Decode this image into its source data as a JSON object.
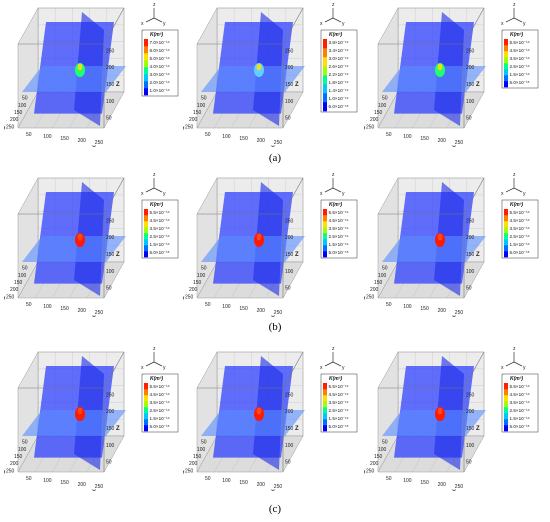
{
  "figure": {
    "rows": [
      {
        "caption": "(a)",
        "panels": [
          {
            "legend_title": "K(m²)",
            "legend_values": [
              "7.0×10⁻¹⁴",
              "6.0×10⁻¹⁴",
              "5.0×10⁻¹⁴",
              "4.0×10⁻¹⁴",
              "3.0×10⁻¹⁴",
              "2.0×10⁻¹⁴",
              "1.0×10⁻¹⁴"
            ],
            "blob": "green"
          },
          {
            "legend_title": "K(m²)",
            "legend_values": [
              "3.8×10⁻¹⁴",
              "3.4×10⁻¹⁴",
              "3.0×10⁻¹⁴",
              "2.6×10⁻¹⁴",
              "2.2×10⁻¹⁴",
              "1.8×10⁻¹⁴",
              "1.4×10⁻¹⁴",
              "1.0×10⁻¹⁴",
              "6.0×10⁻¹⁵"
            ],
            "blob": "faint"
          },
          {
            "legend_title": "K(m²)",
            "legend_values": [
              "5.5×10⁻¹⁴",
              "4.5×10⁻¹⁴",
              "3.5×10⁻¹⁴",
              "2.5×10⁻¹⁴",
              "1.5×10⁻¹⁴",
              "5.0×10⁻¹⁵"
            ],
            "blob": "green"
          }
        ]
      },
      {
        "caption": "(b)",
        "panels": [
          {
            "legend_title": "K(m²)",
            "legend_values": [
              "5.5×10⁻¹⁴",
              "4.5×10⁻¹⁴",
              "3.5×10⁻¹⁴",
              "2.5×10⁻¹⁴",
              "1.5×10⁻¹⁴",
              "5.0×10⁻¹⁵"
            ],
            "blob": "red"
          },
          {
            "legend_title": "K(m²)",
            "legend_values": [
              "5.5×10⁻¹⁴",
              "4.5×10⁻¹⁴",
              "3.5×10⁻¹⁴",
              "2.5×10⁻¹⁴",
              "1.5×10⁻¹⁴",
              "5.0×10⁻¹⁵"
            ],
            "blob": "red"
          },
          {
            "legend_title": "K(m²)",
            "legend_values": [
              "5.5×10⁻¹⁴",
              "4.5×10⁻¹⁴",
              "3.5×10⁻¹⁴",
              "2.5×10⁻¹⁴",
              "1.5×10⁻¹⁴",
              "5.0×10⁻¹⁵"
            ],
            "blob": "red"
          }
        ]
      },
      {
        "caption": "(c)",
        "panels": [
          {
            "legend_title": "K(m²)",
            "legend_values": [
              "5.5×10⁻¹⁴",
              "4.5×10⁻¹⁴",
              "3.5×10⁻¹⁴",
              "2.5×10⁻¹⁴",
              "1.5×10⁻¹⁴",
              "5.0×10⁻¹⁵"
            ],
            "blob": "red"
          },
          {
            "legend_title": "K(m²)",
            "legend_values": [
              "5.5×10⁻¹⁴",
              "4.5×10⁻¹⁴",
              "3.5×10⁻¹⁴",
              "2.5×10⁻¹⁴",
              "1.5×10⁻¹⁴",
              "5.0×10⁻¹⁵"
            ],
            "blob": "red"
          },
          {
            "legend_title": "K(m²)",
            "legend_values": [
              "5.5×10⁻¹⁴",
              "4.5×10⁻¹⁴",
              "3.5×10⁻¹⁴",
              "2.5×10⁻¹⁴",
              "1.5×10⁻¹⁴",
              "5.0×10⁻¹⁵"
            ],
            "blob": "red"
          }
        ]
      }
    ],
    "axes": {
      "x_label": "X",
      "y_label": "y",
      "z_label": "Z",
      "x_ticks": [
        "50",
        "100",
        "150",
        "200",
        "250"
      ],
      "y_ticks": [
        "50",
        "100",
        "150",
        "200",
        "250"
      ],
      "z_ticks": [
        "50",
        "100",
        "150",
        "200",
        "250"
      ],
      "triad": {
        "z": "z",
        "x": "x",
        "y": "y"
      }
    },
    "colors": {
      "plane_vertical": "#2a3cff",
      "plane_horizontal": "#5a8cff",
      "grid": "#9a9a9a",
      "colormap": [
        "#0000ff",
        "#0070ff",
        "#00c8ff",
        "#00ff90",
        "#a0ff00",
        "#ffe000",
        "#ff8000",
        "#ff2000"
      ]
    }
  }
}
